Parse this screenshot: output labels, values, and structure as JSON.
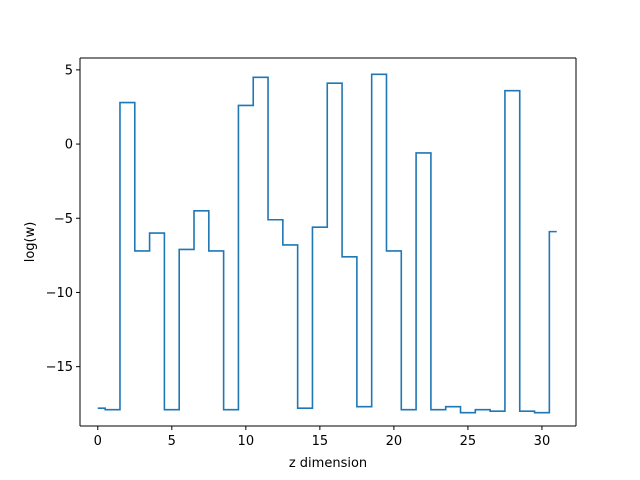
{
  "chart_data": {
    "type": "line",
    "style": "step",
    "title": "",
    "xlabel": "z dimension",
    "ylabel": "log(w)",
    "xlim": [
      -1.2,
      32.3
    ],
    "ylim": [
      -19.0,
      5.8
    ],
    "xticks": [
      0,
      5,
      10,
      15,
      20,
      25,
      30
    ],
    "yticks": [
      5,
      0,
      -5,
      -10,
      -15
    ],
    "ytick_labels": [
      "5",
      "0",
      "−5",
      "−10",
      "−15"
    ],
    "grid": false,
    "legend": "none",
    "series": [
      {
        "name": "",
        "color": "#1f77b4",
        "x": [
          0,
          1,
          2,
          3,
          4,
          5,
          6,
          7,
          8,
          9,
          10,
          11,
          12,
          13,
          14,
          15,
          16,
          17,
          18,
          19,
          20,
          21,
          22,
          23,
          24,
          25,
          26,
          27,
          28,
          29,
          30,
          31
        ],
        "y": [
          -17.8,
          -17.9,
          2.8,
          -7.2,
          -6.0,
          -17.9,
          -7.1,
          -4.5,
          -7.2,
          -17.9,
          2.6,
          4.5,
          -5.1,
          -6.8,
          -17.8,
          -5.6,
          4.1,
          -7.6,
          -17.7,
          4.7,
          -7.2,
          -17.9,
          -0.6,
          -17.9,
          -17.7,
          -18.1,
          -17.9,
          -18.0,
          3.6,
          -18.0,
          -18.1,
          -5.9
        ]
      }
    ]
  }
}
